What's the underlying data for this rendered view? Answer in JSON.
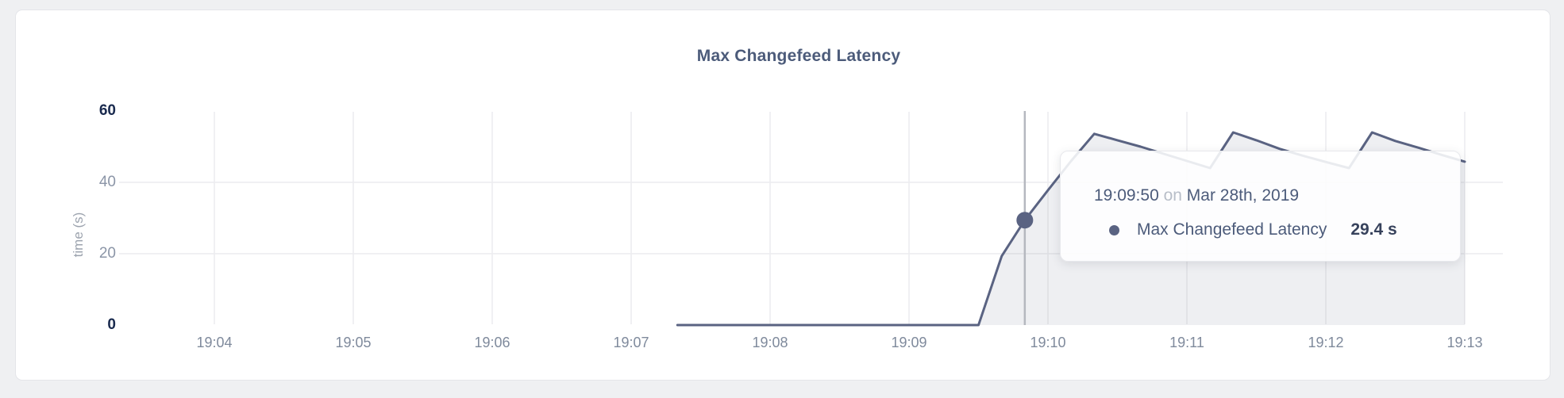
{
  "card": {
    "title": "Max Changefeed Latency"
  },
  "chart_data": {
    "type": "area",
    "title": "Max Changefeed Latency",
    "xlabel": "",
    "ylabel": "time (s)",
    "ylim": [
      0,
      60
    ],
    "grid": true,
    "legend_position": "none",
    "x_ticks": [
      "19:04",
      "19:05",
      "19:06",
      "19:07",
      "19:08",
      "19:09",
      "19:10",
      "19:11",
      "19:12",
      "19:13"
    ],
    "y_ticks": [
      {
        "label": "0",
        "value": 0,
        "emphasis": true,
        "grid": false
      },
      {
        "label": "20",
        "value": 20,
        "emphasis": false,
        "grid": true
      },
      {
        "label": "40",
        "value": 40,
        "emphasis": false,
        "grid": true
      },
      {
        "label": "60",
        "value": 60,
        "emphasis": true,
        "grid": false
      }
    ],
    "series": [
      {
        "name": "Max Changefeed Latency",
        "unit": "s",
        "color": "#5a6382",
        "points": [
          [
            "19:07:20",
            0
          ],
          [
            "19:07:30",
            0
          ],
          [
            "19:07:40",
            0
          ],
          [
            "19:07:50",
            0
          ],
          [
            "19:08:00",
            0
          ],
          [
            "19:08:10",
            0
          ],
          [
            "19:08:20",
            0
          ],
          [
            "19:08:30",
            0
          ],
          [
            "19:08:40",
            0
          ],
          [
            "19:08:50",
            0
          ],
          [
            "19:09:00",
            0
          ],
          [
            "19:09:10",
            0
          ],
          [
            "19:09:20",
            0
          ],
          [
            "19:09:30",
            0
          ],
          [
            "19:09:40",
            19.3
          ],
          [
            "19:09:50",
            29.4
          ],
          [
            "19:10:00",
            37.8
          ],
          [
            "19:10:10",
            46.0
          ],
          [
            "19:10:20",
            53.6
          ],
          [
            "19:10:30",
            51.8
          ],
          [
            "19:10:40",
            50.0
          ],
          [
            "19:10:50",
            48.0
          ],
          [
            "19:11:00",
            46.0
          ],
          [
            "19:11:10",
            44.0
          ],
          [
            "19:11:20",
            54.0
          ],
          [
            "19:11:30",
            51.8
          ],
          [
            "19:11:40",
            49.4
          ],
          [
            "19:11:50",
            47.5
          ],
          [
            "19:12:00",
            45.7
          ],
          [
            "19:12:10",
            44.0
          ],
          [
            "19:12:20",
            54.0
          ],
          [
            "19:12:30",
            51.6
          ],
          [
            "19:12:40",
            49.7
          ],
          [
            "19:12:50",
            47.7
          ],
          [
            "19:13:00",
            45.8
          ]
        ]
      }
    ]
  },
  "hover": {
    "time": "19:09:50",
    "value": 29.4,
    "tooltip": {
      "time": "19:09:50",
      "joiner": "on",
      "date": "Mar 28th, 2019",
      "series_name": "Max Changefeed Latency",
      "value_label": "29.4 s"
    }
  },
  "colors": {
    "line": "#5a6382",
    "fill": "rgba(90,99,130,0.10)",
    "grid": "#ececef",
    "crosshair": "#b5b8bf",
    "title_text": "#4c5b7a",
    "page_bg": "#eff0f2",
    "card_bg": "#ffffff"
  }
}
